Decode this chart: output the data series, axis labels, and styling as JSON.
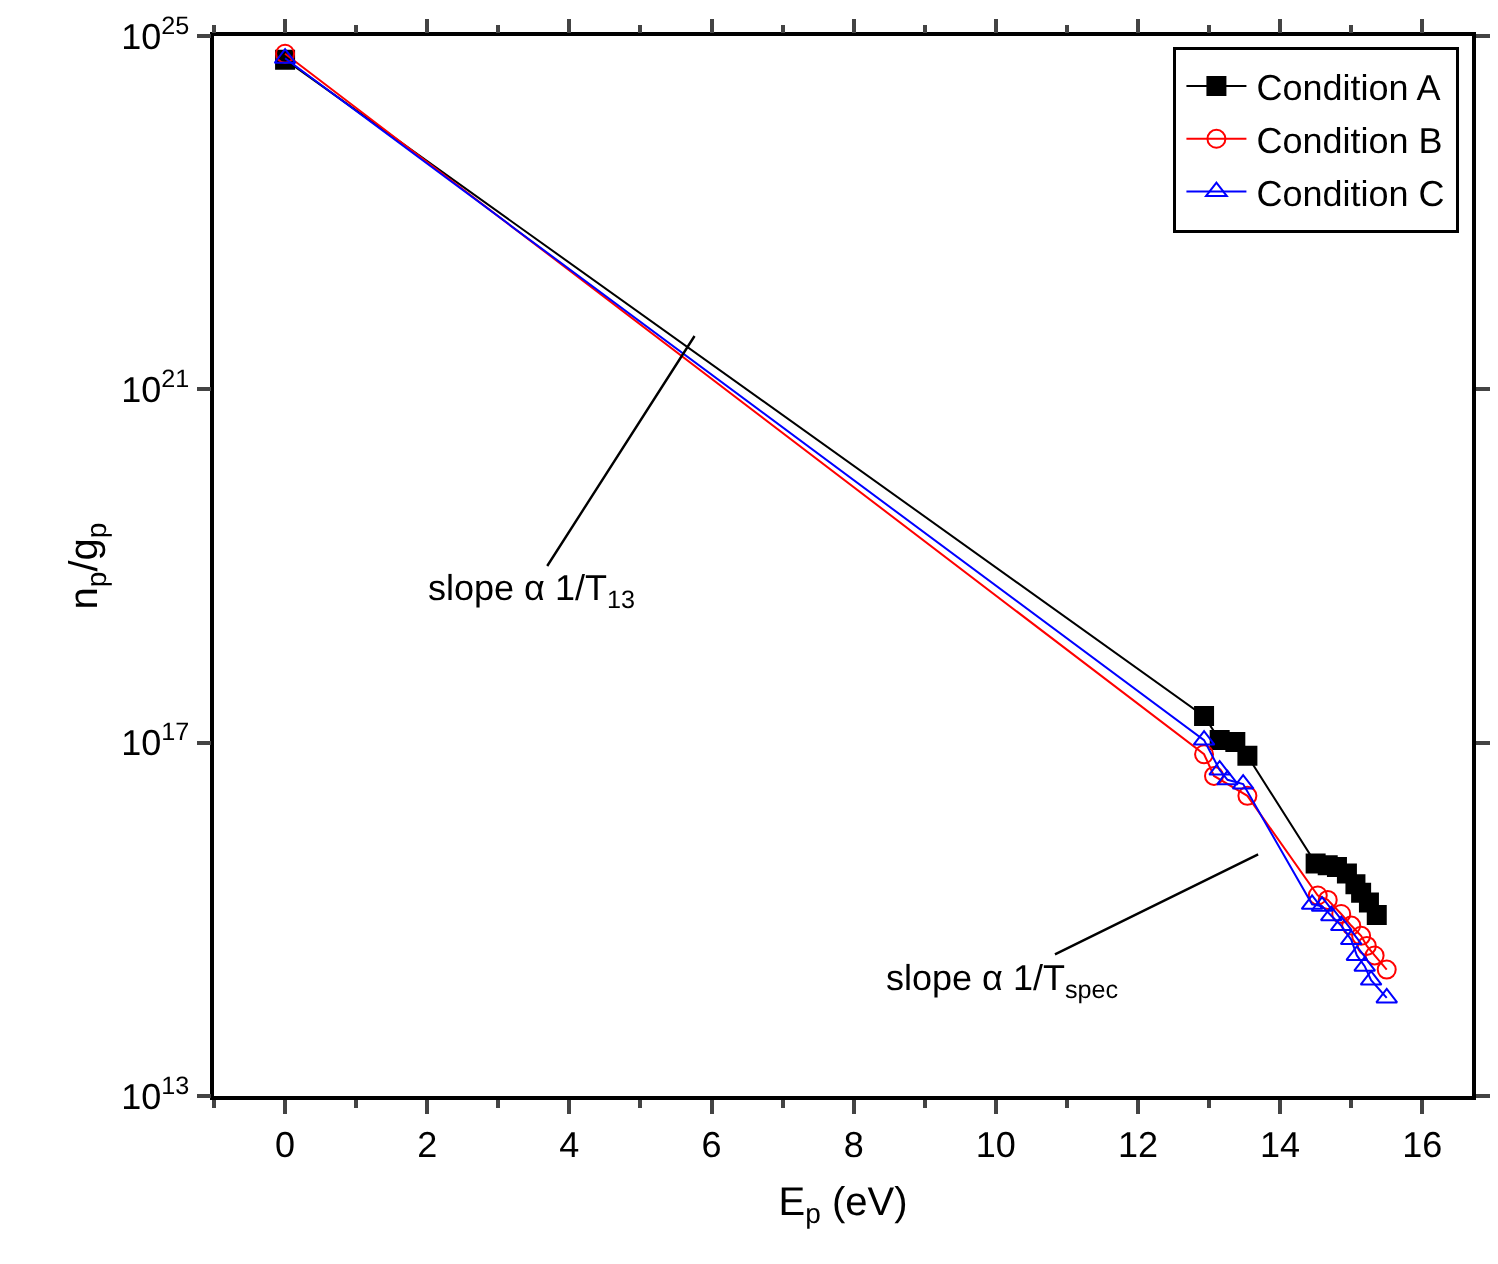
{
  "chart_data": {
    "type": "line",
    "xlabel": "E$_{p}$ (eV)",
    "ylabel": "n$_{p}$/g$_{p}$",
    "log": "y",
    "xlim": [
      -1,
      16.7
    ],
    "xticks": [
      0,
      2,
      4,
      6,
      8,
      10,
      12,
      14,
      16
    ],
    "ylim": [
      10000000000000.0,
      1e+25
    ],
    "yticks": [
      {
        "value": 10000000000000.0,
        "label": "10$^{13}$"
      },
      {
        "value": 1e+17,
        "label": "10$^{17}$"
      },
      {
        "value": 1e+21,
        "label": "10$^{21}$"
      },
      {
        "value": 1e+25,
        "label": "10$^{25}$"
      }
    ],
    "legend": "top right",
    "line_style": "solid",
    "series": [
      {
        "name": "Condition A",
        "color": "#000000",
        "marker": "square",
        "x": [
          0,
          12.93,
          13.15,
          13.37,
          13.54,
          14.5,
          14.67,
          14.8,
          14.94,
          15.06,
          15.14,
          15.25,
          15.36
        ],
        "values": [
          5.4e+24,
          2e+17,
          1.07e+17,
          1.02e+17,
          7.1e+16,
          4300000000000000.0,
          4100000000000000.0,
          3900000000000000.0,
          3300000000000000.0,
          2500000000000000.0,
          2000000000000000.0,
          1550000000000000.0,
          1120000000000000.0
        ]
      },
      {
        "name": "Condition B",
        "color": "#ff0000",
        "marker": "circle",
        "x": [
          0,
          12.93,
          13.07,
          13.54,
          14.53,
          14.67,
          14.86,
          15.0,
          15.14,
          15.22,
          15.33,
          15.5
        ],
        "values": [
          6.3e+24,
          7.4e+16,
          4.2e+16,
          2.5e+16,
          1860000000000000.0,
          1660000000000000.0,
          1150000000000000.0,
          850000000000000.0,
          650000000000000.0,
          500000000000000.0,
          390000000000000.0,
          270000000000000.0
        ]
      },
      {
        "name": "Condition C",
        "color": "#0000ff",
        "marker": "triangle",
        "x": [
          0,
          12.93,
          13.15,
          13.26,
          13.48,
          14.45,
          14.59,
          14.72,
          14.86,
          15.0,
          15.08,
          15.19,
          15.28,
          15.5
        ],
        "values": [
          5.6e+24,
          1.07e+17,
          4.9e+16,
          3.8e+16,
          3.4e+16,
          1480000000000000.0,
          1410000000000000.0,
          1100000000000000.0,
          850000000000000.0,
          590000000000000.0,
          390000000000000.0,
          295000000000000.0,
          205000000000000.0,
          129000000000000.0
        ]
      }
    ],
    "annotations": [
      "slope α 1/T$_{13}$",
      "slope α 1/T$_{spec}$"
    ]
  }
}
